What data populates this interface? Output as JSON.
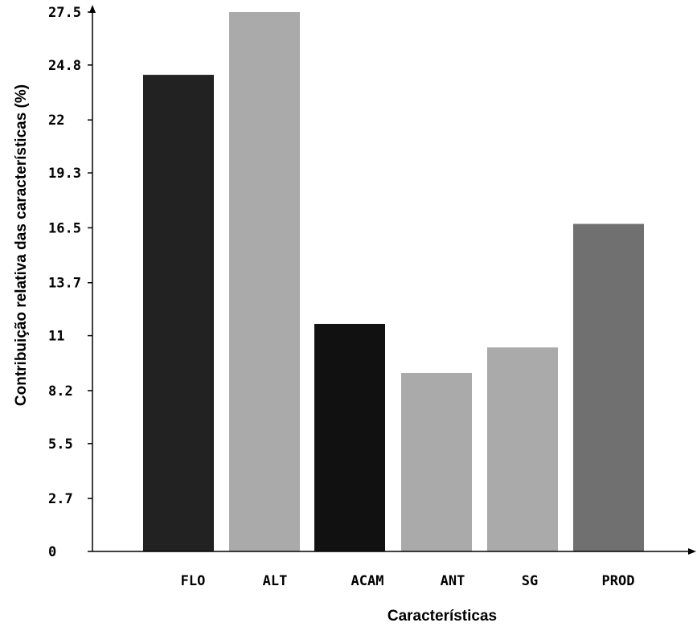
{
  "chart_data": {
    "type": "bar",
    "title": "",
    "xlabel": "Características",
    "ylabel": "Contribuição relativa das características (%)",
    "categories": [
      "FLO",
      "ALT",
      "ACAM",
      "ANT",
      "SG",
      "PROD"
    ],
    "values": [
      24.3,
      27.5,
      11.6,
      9.1,
      10.4,
      16.7
    ],
    "colors": [
      "#222222",
      "#aaaaaa",
      "#111111",
      "#aaaaaa",
      "#aaaaaa",
      "#707070"
    ],
    "yticks": [
      0,
      2.7,
      5.5,
      8.2,
      11,
      13.7,
      16.5,
      19.3,
      22,
      24.8,
      27.5
    ],
    "ytick_labels": [
      "0",
      "2.7",
      "5.5",
      "8.2",
      "11",
      "13.7",
      "16.5",
      "19.3",
      "22",
      "24.8",
      "27.5"
    ],
    "ylim": [
      0,
      27.5
    ],
    "grid": false,
    "legend": "none"
  }
}
